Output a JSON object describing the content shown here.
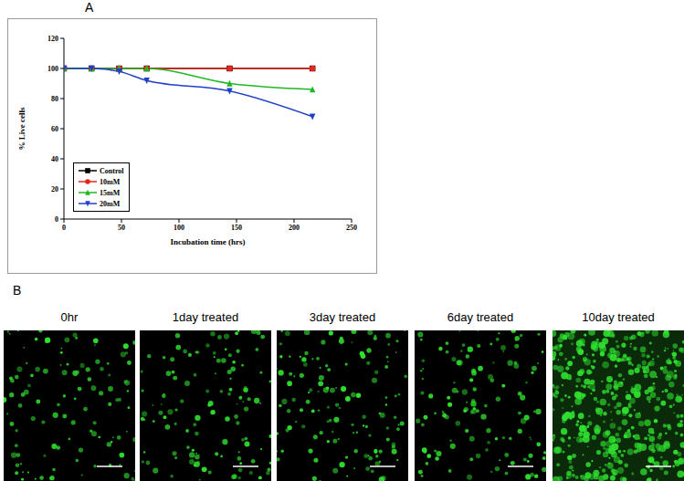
{
  "chart_data": {
    "type": "line",
    "x_label": "Incubation time (hrs)",
    "y_label": "% Live cells",
    "x": [
      0,
      24,
      48,
      72,
      144,
      216
    ],
    "series": [
      {
        "name": "Control",
        "color": "#000000",
        "marker": "square",
        "values": [
          100,
          100,
          100,
          100,
          100,
          100
        ]
      },
      {
        "name": "10mM",
        "color": "#e8261c",
        "marker": "circle",
        "values": [
          100,
          100,
          100,
          100,
          100,
          100
        ]
      },
      {
        "name": "15mM",
        "color": "#1fb824",
        "marker": "triangle",
        "values": [
          100,
          100,
          100,
          100,
          90,
          86
        ]
      },
      {
        "name": "20mM",
        "color": "#1f3fc8",
        "marker": "triangle-down",
        "values": [
          100,
          100,
          98,
          92,
          85,
          68
        ]
      }
    ],
    "xlim": [
      0,
      250
    ],
    "xticks": [
      0,
      50,
      100,
      150,
      200,
      250
    ],
    "ylim": [
      0,
      120
    ],
    "yticks": [
      0,
      20,
      40,
      60,
      80,
      100,
      120
    ],
    "legend": "lower left",
    "grid": false
  },
  "figure": {
    "panel_labels": [
      "A",
      "B"
    ],
    "image_captions": [
      "0hr",
      "1day treated",
      "3day treated",
      "6day treated",
      "10day treated"
    ]
  }
}
